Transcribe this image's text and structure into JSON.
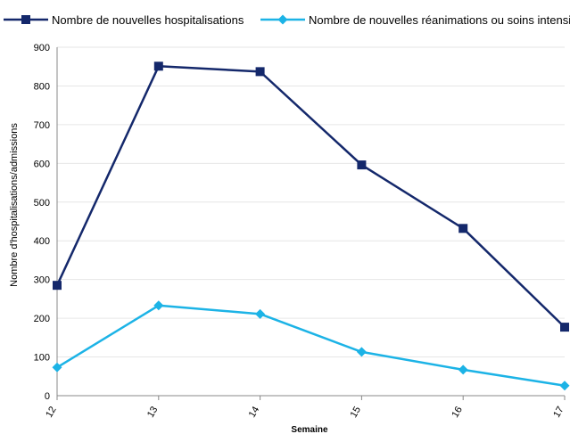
{
  "chart_data": {
    "type": "line",
    "title": "",
    "xlabel": "Semaine",
    "ylabel": "Nombre d'hospitalisations/admissions",
    "x": [
      12,
      13,
      14,
      15,
      16,
      17
    ],
    "x_tick_labels": [
      "12",
      "13",
      "14",
      "15",
      "16",
      "17"
    ],
    "ylim": [
      0,
      900
    ],
    "y_ticks": [
      0,
      100,
      200,
      300,
      400,
      500,
      600,
      700,
      800,
      900
    ],
    "grid": true,
    "legend_position": "top",
    "series": [
      {
        "name": "Nombre de nouvelles hospitalisations",
        "values": [
          285,
          851,
          837,
          596,
          432,
          177
        ],
        "color": "#14286b",
        "marker": "square"
      },
      {
        "name": "Nombre de nouvelles réanimations ou soins intensifs",
        "values": [
          73,
          233,
          211,
          113,
          67,
          26
        ],
        "color": "#1cb3e6",
        "marker": "diamond"
      }
    ]
  }
}
